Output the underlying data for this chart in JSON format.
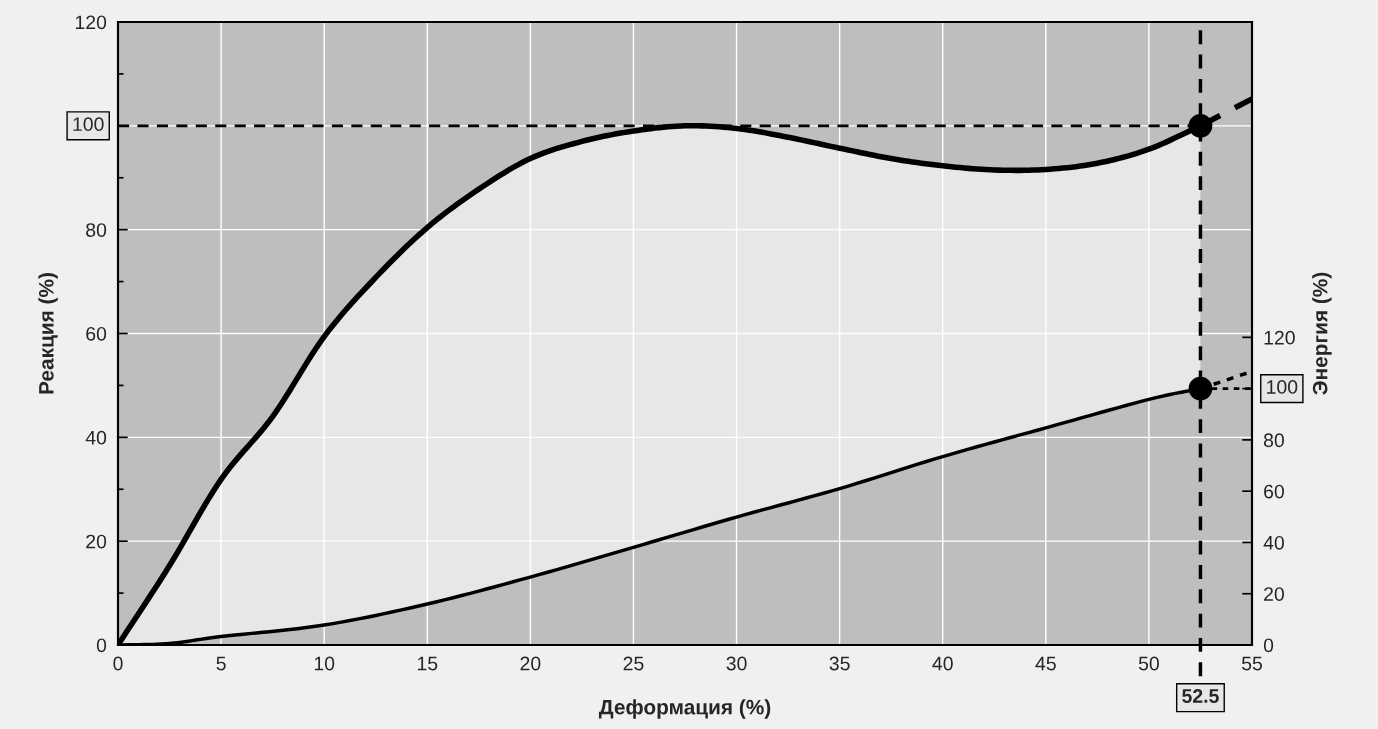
{
  "chart_data": {
    "type": "line",
    "xlabel": "Деформация (%)",
    "ylabel": "Реакция (%)",
    "y2label": "Энергия (%)",
    "xlim": [
      0,
      55
    ],
    "xticks": [
      0,
      5,
      10,
      15,
      20,
      25,
      30,
      35,
      40,
      45,
      50,
      55
    ],
    "ylim": [
      0,
      120
    ],
    "yticks": [
      0,
      20,
      40,
      60,
      80,
      {
        "value": 100,
        "label": null
      },
      120
    ],
    "y2lim": [
      0,
      243
    ],
    "y2ticks": [
      0,
      20,
      40,
      60,
      80,
      {
        "value": 100,
        "label": null
      },
      120
    ],
    "grid": true,
    "series": [
      {
        "color": "#000000",
        "line_style": "solid",
        "x": [
          0,
          2.5,
          5,
          7.5,
          10,
          12.5,
          15,
          17.5,
          20,
          22.5,
          25,
          27.5,
          30,
          32.5,
          35,
          37.5,
          40,
          42.5,
          45,
          47.5,
          50,
          52.5
        ],
        "values": [
          0,
          15.3,
          31.9,
          44,
          59.4,
          70.8,
          80.4,
          87.8,
          93.7,
          97,
          99,
          100,
          99.5,
          97.8,
          95.7,
          93.7,
          92.3,
          91.5,
          91.6,
          92.8,
          95.5,
          100
        ],
        "upper": [
          0,
          15.3,
          31.9,
          44,
          59.4,
          70.8,
          80.4,
          87.8,
          93.7,
          97,
          99,
          100,
          99.5,
          97.8,
          95.7,
          93.7,
          92.3,
          91.5,
          91.6,
          92.8,
          95.5,
          100
        ],
        "lower": [
          0,
          0.3,
          1.6,
          2.6,
          3.9,
          5.7,
          7.9,
          10.4,
          13.1,
          15.8,
          18.8,
          21.7,
          24.6,
          27.4,
          30.1,
          33.2,
          36.3,
          39,
          41.8,
          44.5,
          47.3,
          49.4
        ]
      },
      {
        "color": "#000000",
        "line_style": "dashed",
        "x": [
          52.5,
          55
        ],
        "values": [
          100,
          105.2
        ]
      },
      {
        "color": "#000000",
        "line_style": "solid",
        "axis": "y2",
        "x": [
          0,
          2.5,
          5,
          10,
          15,
          20,
          25,
          30,
          35,
          40,
          45,
          50,
          52.5
        ],
        "values": [
          0,
          0.6,
          3.3,
          7.8,
          16,
          26.5,
          38.1,
          49.9,
          61,
          73.5,
          84.7,
          95.8,
          100
        ]
      },
      {
        "color": "#000000",
        "line_style": "dotted",
        "axis": "y2",
        "x": [
          52.5,
          55
        ],
        "values": [
          100,
          106.7
        ]
      },
      {
        "type": "scatter",
        "color": "#000000",
        "marker": "circle",
        "x": [
          52.5
        ],
        "values": [
          100
        ]
      },
      {
        "type": "scatter",
        "color": "#000000",
        "marker": "circle",
        "axis": "y2",
        "x": [
          52.5
        ],
        "values": [
          100
        ]
      }
    ],
    "ref_lines": [
      {
        "axis": "y",
        "value": 100,
        "label": "100",
        "color": "#000000",
        "line_style": "dashed"
      },
      {
        "axis": "x",
        "value": 52.5,
        "label": "52.5",
        "color": "#000000",
        "line_style": "dashed"
      },
      {
        "axis": "y2",
        "value": 100,
        "label": "100",
        "color": "#000000",
        "line_style": "dotted"
      }
    ]
  }
}
